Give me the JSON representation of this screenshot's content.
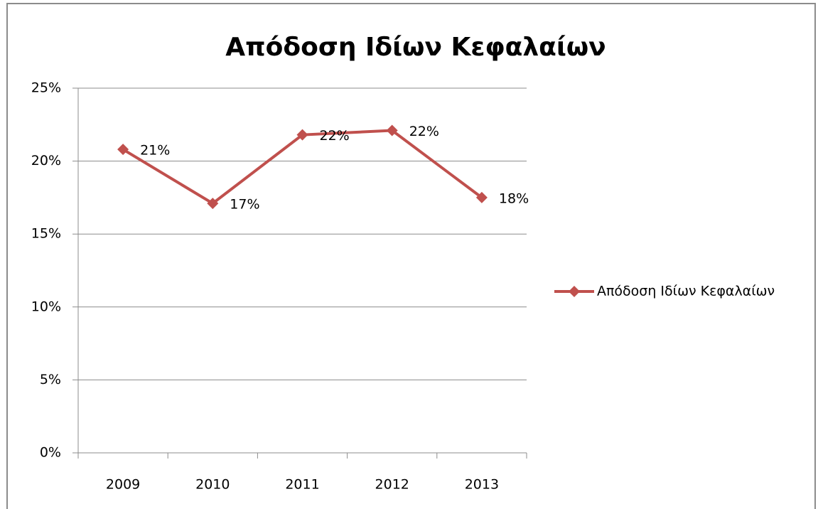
{
  "chart_data": {
    "type": "line",
    "title": "Απόδοση Ιδίων Κεφαλαίων",
    "categories": [
      "2009",
      "2010",
      "2011",
      "2012",
      "2013"
    ],
    "series": [
      {
        "name": "Απόδοση Ιδίων Κεφαλαίων",
        "color": "#c0504d",
        "values": [
          20.8,
          17.1,
          21.8,
          22.1,
          17.5
        ],
        "value_labels": [
          "21%",
          "17%",
          "22%",
          "22%",
          "18%"
        ]
      }
    ],
    "ylim": [
      0,
      25
    ],
    "yticks": [
      {
        "value": 0,
        "label": "0%"
      },
      {
        "value": 5,
        "label": "5%"
      },
      {
        "value": 10,
        "label": "10%"
      },
      {
        "value": 15,
        "label": "15%"
      },
      {
        "value": 20,
        "label": "20%"
      },
      {
        "value": 25,
        "label": "25%"
      }
    ],
    "grid": true,
    "legend": "right"
  }
}
